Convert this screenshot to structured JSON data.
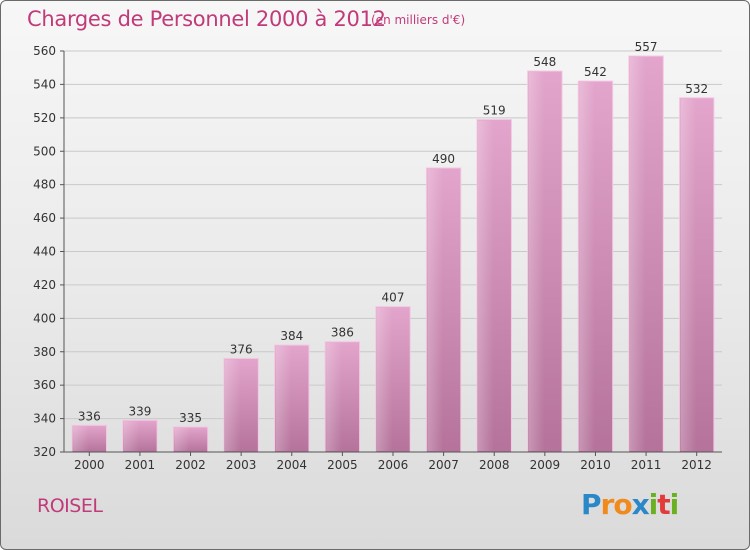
{
  "title": "Charges de Personnel 2000 à 2012",
  "unit": "(en milliers d'€)",
  "commune": "ROISEL",
  "logo": {
    "letters": [
      "P",
      "r",
      "o",
      "x",
      "i",
      "t",
      "i"
    ],
    "colors": [
      "#2a87c8",
      "#f08a1c",
      "#f08a1c",
      "#2a87c8",
      "#6ab023",
      "#e23b3b",
      "#6ab023"
    ]
  },
  "chart_data": {
    "type": "bar",
    "categories": [
      "2000",
      "2001",
      "2002",
      "2003",
      "2004",
      "2005",
      "2006",
      "2007",
      "2008",
      "2009",
      "2010",
      "2011",
      "2012"
    ],
    "values": [
      336,
      339,
      335,
      376,
      384,
      386,
      407,
      490,
      519,
      548,
      542,
      557,
      532
    ],
    "ylim": [
      320,
      560
    ],
    "yticks": [
      320,
      340,
      360,
      380,
      400,
      420,
      440,
      460,
      480,
      500,
      520,
      540,
      560
    ],
    "grid": true,
    "bar_color": "#d98ebc",
    "title": "Charges de Personnel 2000 à 2012",
    "xlabel": "",
    "ylabel": ""
  }
}
